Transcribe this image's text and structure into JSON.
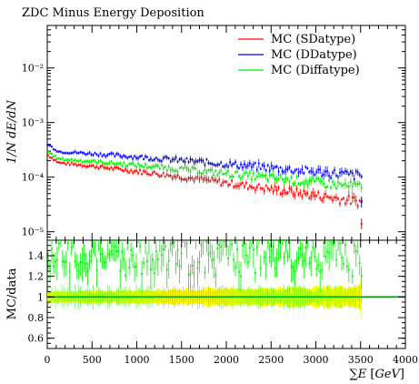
{
  "chart_data": [
    {
      "type": "scatter",
      "title": "ZDC Minus Energy Deposition",
      "ylabel_html": "1/N dE/dN",
      "xlim": [
        0,
        4000
      ],
      "ylim": [
        7e-06,
        0.06
      ],
      "yscale": "log",
      "y_ticks": [
        {
          "value": 1e-05,
          "label": "10⁻⁵"
        },
        {
          "value": 0.0001,
          "label": "10⁻⁴"
        },
        {
          "value": 0.001,
          "label": "10⁻³"
        },
        {
          "value": 0.01,
          "label": "10⁻²"
        }
      ],
      "legend_position": "top-right",
      "series": [
        {
          "name": "MC (SDatype)",
          "color": "#ff0000",
          "x_range": [
            10,
            3510
          ],
          "n_points": 175,
          "start_value": 0.00019,
          "end_value": 3.5e-05
        },
        {
          "name": "MC (DDatype)",
          "color": "#0000ff",
          "x_range": [
            10,
            3510
          ],
          "n_points": 175,
          "start_value": 0.0003,
          "end_value": 0.000105
        },
        {
          "name": "MC (Diffatype)",
          "color": "#00ee00",
          "x_range": [
            10,
            3510
          ],
          "n_points": 175,
          "start_value": 0.00022,
          "end_value": 6.5e-05
        }
      ],
      "end_points": [
        {
          "x": 3510,
          "y": 1.4e-05,
          "color": "#ff0000"
        },
        {
          "x": 3510,
          "y": 3.5e-05,
          "color": "#0000ff"
        }
      ]
    },
    {
      "type": "scatter",
      "ylabel": "MC/data",
      "xlabel": "∑E [GeV]",
      "xlim": [
        0,
        4000
      ],
      "ylim": [
        0.5,
        1.55
      ],
      "x_ticks": [
        0,
        500,
        1000,
        1500,
        2000,
        2500,
        3000,
        3500,
        4000
      ],
      "y_ticks": [
        {
          "value": 0.6,
          "label": "0.6"
        },
        {
          "value": 0.8,
          "label": "0.8"
        },
        {
          "value": 1.0,
          "label": "1"
        },
        {
          "value": 1.2,
          "label": "1.2"
        },
        {
          "value": 1.4,
          "label": "1.4"
        }
      ],
      "band": {
        "color": "#ffff00",
        "x_range": [
          0,
          3510
        ],
        "half_width_start": 0.05,
        "half_width_end": 0.1
      },
      "ratio_series": {
        "color": "#00ee00",
        "x_range": [
          10,
          3510
        ],
        "n_points": 175,
        "typical_range": [
          1.1,
          1.5
        ]
      },
      "reference_line": {
        "y": 1.0,
        "color": "#009900"
      }
    }
  ]
}
